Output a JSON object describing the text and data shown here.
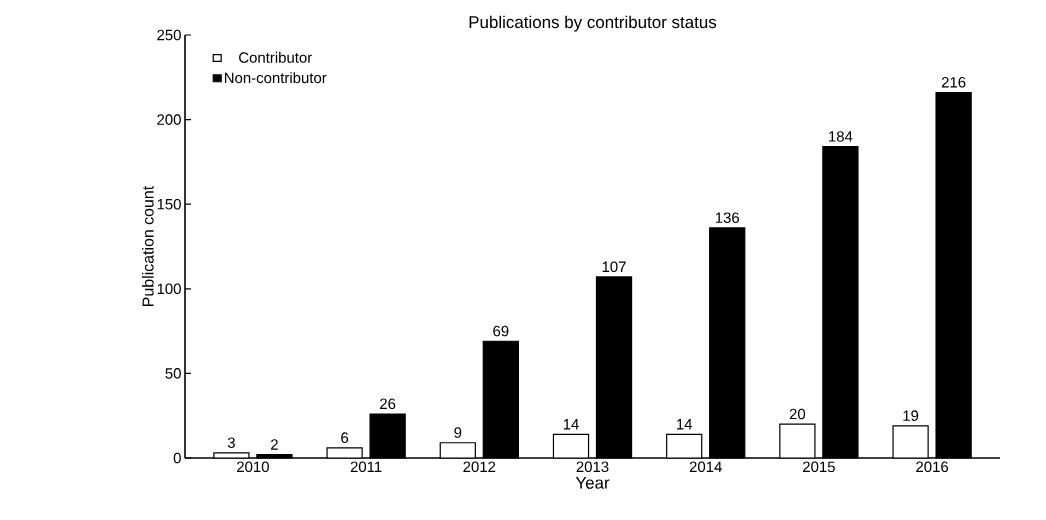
{
  "chart_data": {
    "type": "bar",
    "title": "Publications by contributor status",
    "xlabel": "Year",
    "ylabel": "Publication count",
    "categories": [
      "2010",
      "2011",
      "2012",
      "2013",
      "2014",
      "2015",
      "2016"
    ],
    "series": [
      {
        "name": "Contributor",
        "color": "#ffffff",
        "values": [
          3,
          6,
          9,
          14,
          14,
          20,
          19
        ]
      },
      {
        "name": "Non-contributor",
        "color": "#000000",
        "values": [
          2,
          26,
          69,
          107,
          136,
          184,
          216
        ]
      }
    ],
    "ylim": [
      0,
      250
    ],
    "yticks": [
      0,
      50,
      100,
      150,
      200,
      250
    ],
    "data_labels": true,
    "legend": "top left",
    "grid": false
  }
}
